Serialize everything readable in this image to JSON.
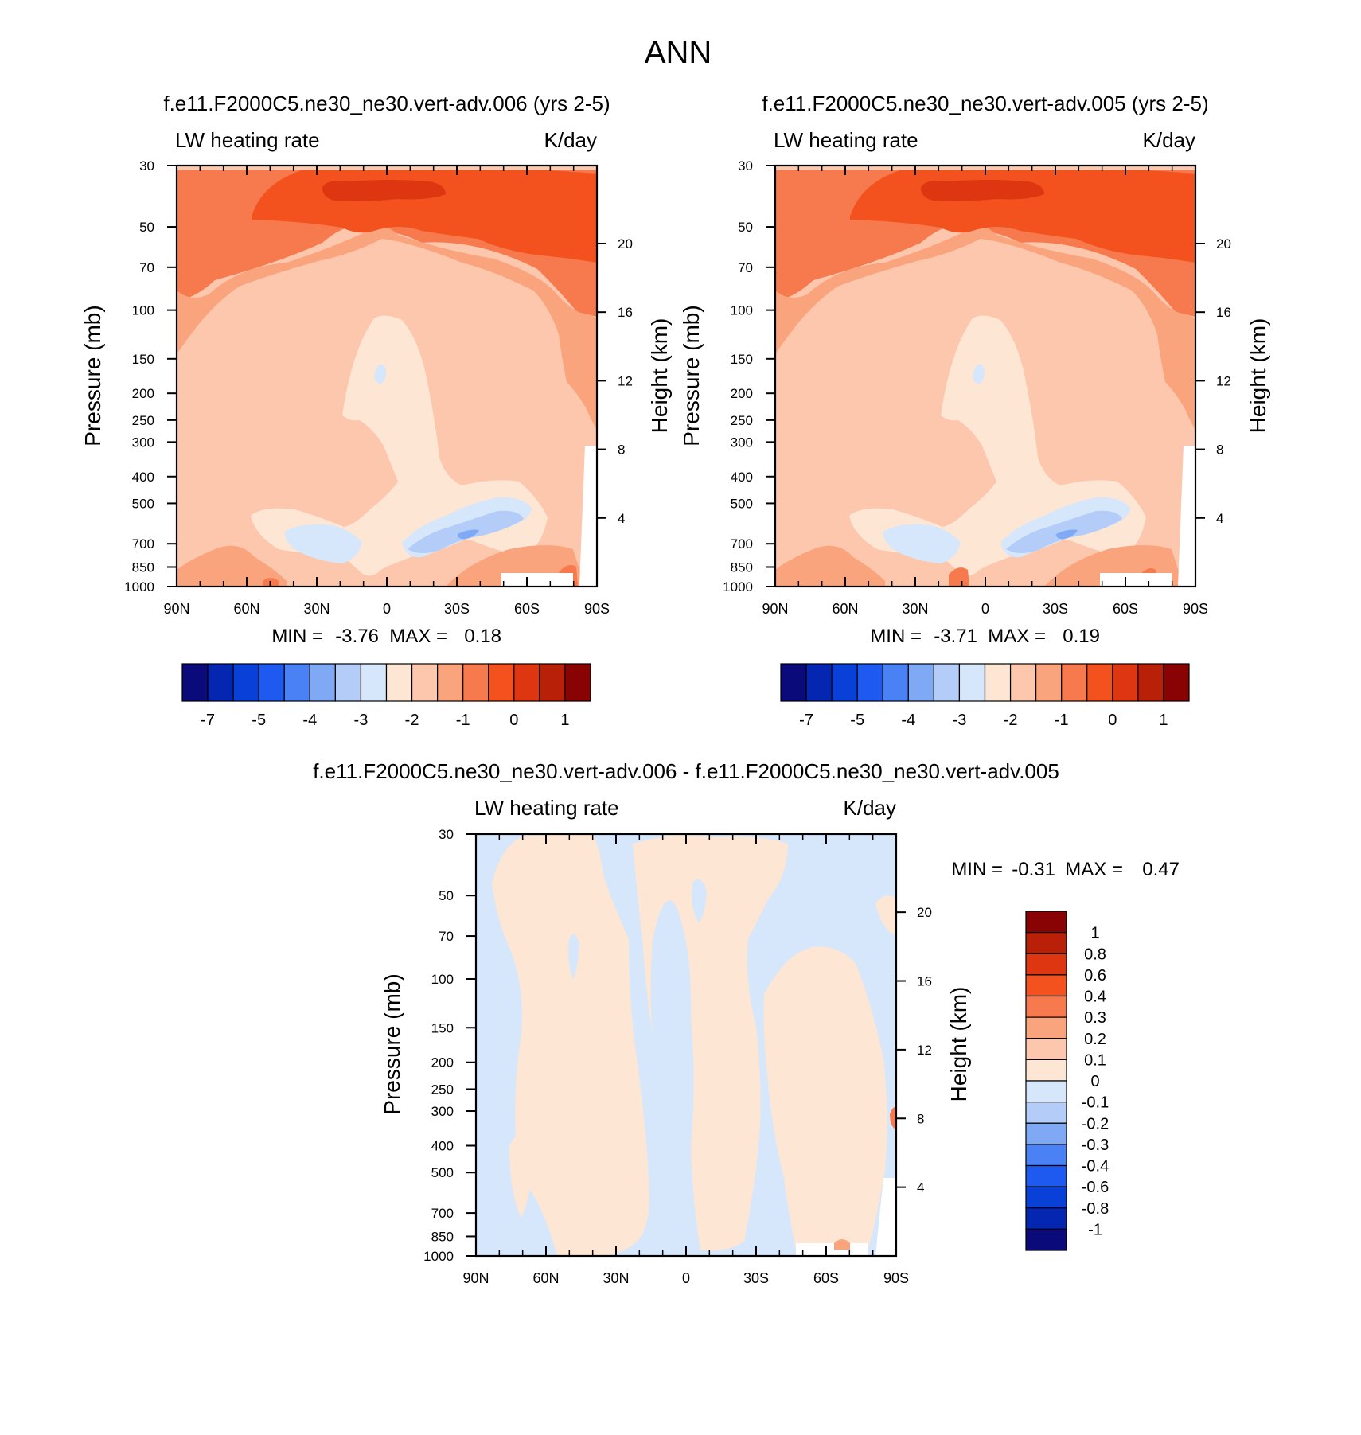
{
  "figure": {
    "title": "ANN"
  },
  "chart_data": [
    {
      "type": "heatmap",
      "title": "f.e11.F2000C5.ne30_ne30.vert-adv.006 (yrs 2-5)",
      "variable": "LW heating rate",
      "units": "K/day",
      "ylabel": "Pressure (mb)",
      "ylabel_right": "Height (km)",
      "x_ticks": [
        "90N",
        "60N",
        "30N",
        "0",
        "30S",
        "60S",
        "90S"
      ],
      "y_ticks": [
        30,
        50,
        70,
        100,
        150,
        200,
        250,
        300,
        400,
        500,
        700,
        850,
        1000
      ],
      "y_right_ticks": [
        20,
        16,
        12,
        8,
        4
      ],
      "ylim": [
        30,
        1000
      ],
      "y_scale": "log",
      "min_label": "MIN =",
      "min_value": "-3.76",
      "max_label": "MAX =",
      "max_value": "0.18",
      "colorbar": {
        "orientation": "horizontal",
        "colors": [
          "#0a0a7a",
          "#0426b0",
          "#0840d8",
          "#1f5af0",
          "#4a82f5",
          "#7fa8f5",
          "#b3ccf8",
          "#d7e7fb",
          "#fde6d4",
          "#fcc7ac",
          "#faa47e",
          "#f77a4f",
          "#f3521f",
          "#dd3610",
          "#b82108",
          "#8a0304"
        ],
        "labels": [
          "-7",
          "-5",
          "-4",
          "-3",
          "-2",
          "-1",
          "0",
          "1"
        ]
      }
    },
    {
      "type": "heatmap",
      "title": "f.e11.F2000C5.ne30_ne30.vert-adv.005 (yrs 2-5)",
      "variable": "LW heating rate",
      "units": "K/day",
      "ylabel": "Pressure (mb)",
      "ylabel_right": "Height (km)",
      "x_ticks": [
        "90N",
        "60N",
        "30N",
        "0",
        "30S",
        "60S",
        "90S"
      ],
      "y_ticks": [
        30,
        50,
        70,
        100,
        150,
        200,
        250,
        300,
        400,
        500,
        700,
        850,
        1000
      ],
      "y_right_ticks": [
        20,
        16,
        12,
        8,
        4
      ],
      "ylim": [
        30,
        1000
      ],
      "y_scale": "log",
      "min_label": "MIN =",
      "min_value": "-3.71",
      "max_label": "MAX =",
      "max_value": "0.19",
      "colorbar": {
        "orientation": "horizontal",
        "colors": [
          "#0a0a7a",
          "#0426b0",
          "#0840d8",
          "#1f5af0",
          "#4a82f5",
          "#7fa8f5",
          "#b3ccf8",
          "#d7e7fb",
          "#fde6d4",
          "#fcc7ac",
          "#faa47e",
          "#f77a4f",
          "#f3521f",
          "#dd3610",
          "#b82108",
          "#8a0304"
        ],
        "labels": [
          "-7",
          "-5",
          "-4",
          "-3",
          "-2",
          "-1",
          "0",
          "1"
        ]
      }
    },
    {
      "type": "heatmap",
      "title": "f.e11.F2000C5.ne30_ne30.vert-adv.006 - f.e11.F2000C5.ne30_ne30.vert-adv.005",
      "variable": "LW heating rate",
      "units": "K/day",
      "ylabel": "Pressure (mb)",
      "ylabel_right": "Height (km)",
      "x_ticks": [
        "90N",
        "60N",
        "30N",
        "0",
        "30S",
        "60S",
        "90S"
      ],
      "y_ticks": [
        30,
        50,
        70,
        100,
        150,
        200,
        250,
        300,
        400,
        500,
        700,
        850,
        1000
      ],
      "y_right_ticks": [
        20,
        16,
        12,
        8,
        4
      ],
      "ylim": [
        30,
        1000
      ],
      "y_scale": "log",
      "min_label": "MIN =",
      "min_value": "-0.31",
      "max_label": "MAX =",
      "max_value": "0.47",
      "colorbar": {
        "orientation": "vertical",
        "colors": [
          "#8a0304",
          "#b82108",
          "#dd3610",
          "#f3521f",
          "#f77a4f",
          "#faa47e",
          "#fcc7ac",
          "#fde6d4",
          "#d7e7fb",
          "#b3ccf8",
          "#7fa8f5",
          "#4a82f5",
          "#1f5af0",
          "#0840d8",
          "#0426b0",
          "#0a0a7a"
        ],
        "labels": [
          "1",
          "0.8",
          "0.6",
          "0.4",
          "0.3",
          "0.2",
          "0.1",
          "0",
          "-0.1",
          "-0.2",
          "-0.3",
          "-0.4",
          "-0.6",
          "-0.8",
          "-1"
        ]
      }
    }
  ]
}
